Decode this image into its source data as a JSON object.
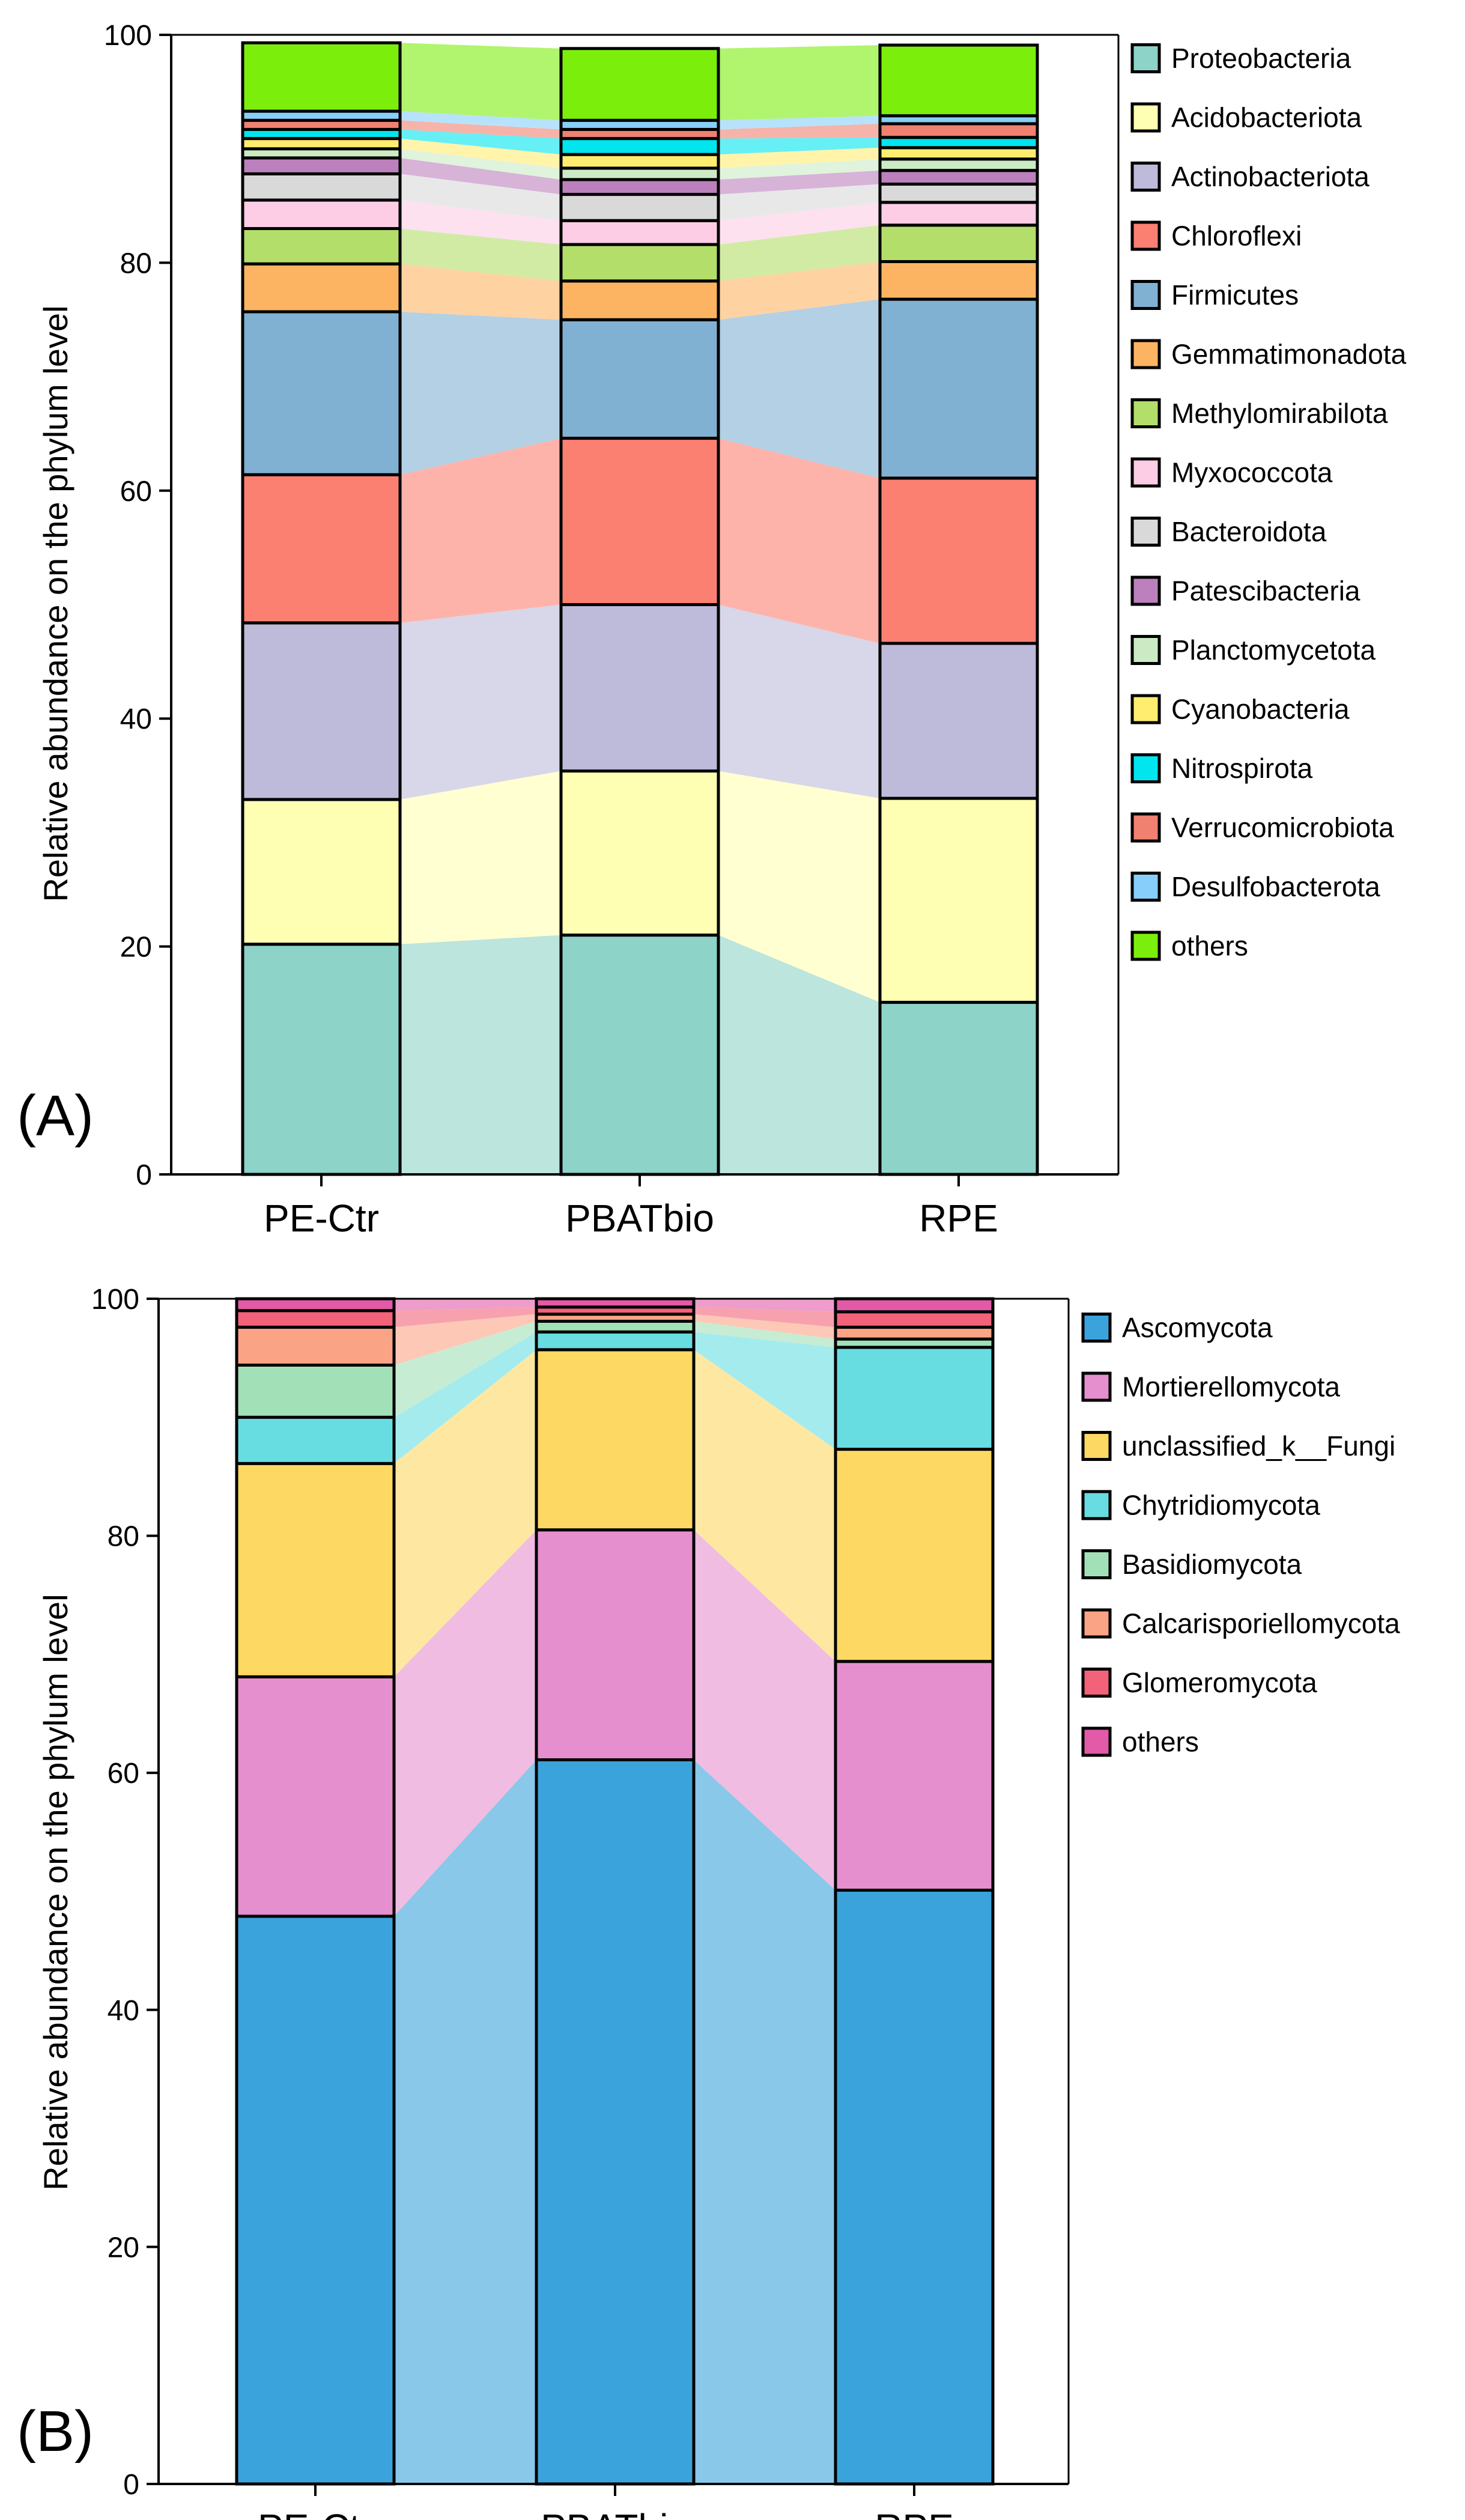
{
  "figure": {
    "panel_labels": [
      "(A)",
      "(B)"
    ]
  },
  "chart_data": [
    {
      "type": "bar",
      "stacked": true,
      "panel": "(A)",
      "title": "",
      "xlabel": "",
      "ylabel": "Relative abundance on the phylum level",
      "ylim": [
        0,
        100
      ],
      "yticks": [
        "0",
        "20",
        "40",
        "60",
        "80",
        "100"
      ],
      "categories": [
        "PE-Ctr",
        "PBATbio",
        "RPE"
      ],
      "legend_position": "right",
      "series": [
        {
          "name": "Proteobacteria",
          "color": "#8DD3C7",
          "values": [
            20.2,
            21.0,
            15.1
          ]
        },
        {
          "name": "Acidobacteriota",
          "color": "#FFFFB3",
          "values": [
            12.7,
            14.4,
            17.9
          ]
        },
        {
          "name": "Actinobacteriota",
          "color": "#BEBADA",
          "values": [
            15.5,
            14.6,
            13.6
          ]
        },
        {
          "name": "Chloroflexi",
          "color": "#FB8072",
          "values": [
            13.0,
            14.6,
            14.5
          ]
        },
        {
          "name": "Firmicutes",
          "color": "#80B1D3",
          "values": [
            14.3,
            10.4,
            15.7
          ]
        },
        {
          "name": "Gemmatimonadota",
          "color": "#FDB462",
          "values": [
            4.2,
            3.4,
            3.3
          ]
        },
        {
          "name": "Methylomirabilota",
          "color": "#B3DE69",
          "values": [
            3.1,
            3.2,
            3.2
          ]
        },
        {
          "name": "Myxococcota",
          "color": "#FCCDE5",
          "values": [
            2.5,
            2.1,
            2.0
          ]
        },
        {
          "name": "Bacteroidota",
          "color": "#D9D9D9",
          "values": [
            2.3,
            2.3,
            1.6
          ]
        },
        {
          "name": "Patescibacteria",
          "color": "#BC80BD",
          "values": [
            1.4,
            1.3,
            1.2
          ]
        },
        {
          "name": "Planctomycetota",
          "color": "#CCEBC5",
          "values": [
            0.8,
            1.0,
            1.0
          ]
        },
        {
          "name": "Cyanobacteria",
          "color": "#FFED6F",
          "values": [
            0.9,
            1.2,
            1.0
          ]
        },
        {
          "name": "Nitrospirota",
          "color": "#00E5EE",
          "values": [
            0.8,
            1.4,
            0.9
          ]
        },
        {
          "name": "Verrucomicrobiota",
          "color": "#F08070",
          "values": [
            0.8,
            0.8,
            1.2
          ]
        },
        {
          "name": "Desulfobacterota",
          "color": "#87CEFA",
          "values": [
            0.8,
            0.8,
            0.7
          ]
        },
        {
          "name": "others",
          "color": "#7CEE0C",
          "values": [
            6.0,
            6.3,
            6.2
          ]
        }
      ]
    },
    {
      "type": "bar",
      "stacked": true,
      "panel": "(B)",
      "title": "",
      "xlabel": "",
      "ylabel": "Relative abundance on the phylum level",
      "ylim": [
        0,
        100
      ],
      "yticks": [
        "0",
        "20",
        "40",
        "60",
        "80",
        "100"
      ],
      "categories": [
        "PE-Ctr",
        "PBATbio",
        "RPE"
      ],
      "legend_position": "right",
      "series": [
        {
          "name": "Ascomycota",
          "color": "#3BA3DB",
          "values": [
            47.9,
            61.1,
            50.1
          ]
        },
        {
          "name": "Mortierellomycota",
          "color": "#E68FCF",
          "values": [
            20.2,
            19.4,
            19.3
          ]
        },
        {
          "name": "unclassified_k__Fungi",
          "color": "#FDD862",
          "values": [
            18.0,
            15.2,
            17.9
          ]
        },
        {
          "name": "Chytridiomycota",
          "color": "#67DDE2",
          "values": [
            3.9,
            1.5,
            8.6
          ]
        },
        {
          "name": "Basidiomycota",
          "color": "#A2E0B7",
          "values": [
            4.4,
            0.9,
            0.7
          ]
        },
        {
          "name": "Calcarisporiellomycota",
          "color": "#FBA385",
          "values": [
            3.2,
            0.6,
            1.0
          ]
        },
        {
          "name": "Glomeromycota",
          "color": "#F2627A",
          "values": [
            1.4,
            0.6,
            1.3
          ]
        },
        {
          "name": "others",
          "color": "#E35AA8",
          "values": [
            1.0,
            0.7,
            1.1
          ]
        }
      ]
    }
  ]
}
